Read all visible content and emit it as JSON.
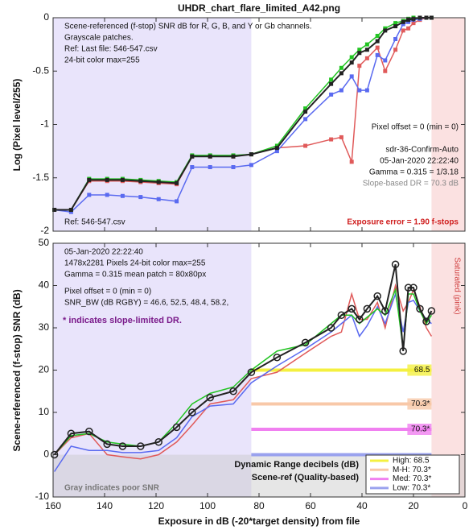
{
  "chart_data": [
    {
      "type": "line",
      "title": "UHDR_chart_flare_limited_A42.png",
      "ylabel": "Log (Pixel level/255)",
      "notes": [
        "Scene-referenced (f-stop) SNR dB for R, G, B, and Y or Gb channels.",
        "Grayscale patches.",
        "Ref: Last file: 546-547.csv",
        "24-bit color  max=255"
      ],
      "info": [
        "Pixel offset = 0  (min = 0)",
        "sdr-36-Confirm-Auto",
        "05-Jan-2020 22:22:40",
        "Gamma = 0.315 = 1/3.18"
      ],
      "slope_dr": "Slope-based DR = 70.3 dB",
      "ref": "Ref: 546-547.csv",
      "exposure_error": "Exposure error = 1.90 f-stops",
      "xlim": [
        160,
        0
      ],
      "xticks": [
        160,
        140,
        120,
        100,
        80,
        60,
        40,
        20,
        0
      ],
      "show_xtick_labels": false,
      "ylim": [
        -2,
        0
      ],
      "yticks": [
        -2,
        -1.5,
        -1,
        -0.5,
        0
      ],
      "regions": [
        {
          "xrange": [
            160,
            83
          ],
          "color": "#e9e4fb"
        },
        {
          "xrange": [
            13,
            0
          ],
          "color": "#fbe1e1"
        }
      ],
      "marker": "square",
      "x": [
        159.5,
        153,
        146,
        139,
        133,
        126,
        119,
        112,
        106,
        99,
        90,
        83,
        73,
        62,
        52,
        48,
        44,
        41,
        38,
        34,
        31,
        27,
        24,
        22,
        20,
        17.5,
        15,
        13
      ],
      "series": [
        {
          "color": "#e05a5a",
          "values": [
            -1.8,
            -1.8,
            -1.53,
            -1.53,
            -1.53,
            -1.54,
            -1.55,
            -1.56,
            -1.3,
            -1.3,
            -1.3,
            -1.28,
            -1.22,
            -1.2,
            -1.14,
            -1.12,
            -1.35,
            -0.45,
            -0.38,
            -0.28,
            -0.5,
            -0.3,
            -0.12,
            -0.1,
            -0.05,
            -0.02,
            0,
            0
          ]
        },
        {
          "color": "#5a6af0",
          "values": [
            -1.8,
            -1.82,
            -1.66,
            -1.66,
            -1.67,
            -1.68,
            -1.7,
            -1.72,
            -1.4,
            -1.4,
            -1.4,
            -1.38,
            -1.25,
            -0.95,
            -0.72,
            -0.68,
            -0.55,
            -0.68,
            -0.68,
            -0.35,
            -0.4,
            -0.2,
            -0.06,
            -0.04,
            -0.02,
            -0.01,
            0,
            0
          ]
        },
        {
          "color": "#22c422",
          "values": [
            -1.8,
            -1.8,
            -1.51,
            -1.51,
            -1.51,
            -1.52,
            -1.53,
            -1.54,
            -1.29,
            -1.29,
            -1.29,
            -1.28,
            -1.2,
            -0.85,
            -0.58,
            -0.47,
            -0.37,
            -0.3,
            -0.25,
            -0.17,
            -0.1,
            -0.05,
            -0.03,
            -0.01,
            0,
            0,
            0,
            0
          ]
        },
        {
          "color": "#222222",
          "values": [
            -1.8,
            -1.8,
            -1.52,
            -1.52,
            -1.52,
            -1.53,
            -1.54,
            -1.55,
            -1.3,
            -1.3,
            -1.3,
            -1.28,
            -1.22,
            -0.88,
            -0.62,
            -0.52,
            -0.42,
            -0.33,
            -0.3,
            -0.22,
            -0.12,
            -0.08,
            -0.04,
            -0.02,
            -0.01,
            0,
            0,
            0
          ]
        }
      ]
    },
    {
      "type": "line",
      "ylabel": "Scene-referenced (f-stop) SNR (dB)",
      "xlabel": "Exposure in dB (-20*target density)   from file",
      "notes": [
        "05-Jan-2020 22:22:40",
        "1478x2281 Pixels   24-bit color  max=255",
        "Gamma = 0.315   mean patch = 80x80px",
        "Pixel offset = 0  (min = 0)",
        "SNR_BW (dB RGBY) = 46.6, 52.5, 48.4, 58.2,"
      ],
      "slope_note": "* indicates slope-limited DR.",
      "saturated": "Saturated (pink)",
      "gray_note": "Gray indicates poor SNR",
      "dr_title": [
        "Dynamic Range decibels (dB)",
        "Scene-ref (Quality-based)"
      ],
      "xlim": [
        160,
        0
      ],
      "xticks": [
        160,
        140,
        120,
        100,
        80,
        60,
        40,
        20,
        0
      ],
      "show_xtick_labels": true,
      "ylim": [
        -10,
        50
      ],
      "yticks": [
        -10,
        0,
        10,
        20,
        30,
        40,
        50
      ],
      "regions": [
        {
          "xrange": [
            160,
            83
          ],
          "color": "#e9e4fb"
        },
        {
          "xrange": [
            13,
            0
          ],
          "color": "#fbe1e1"
        }
      ],
      "poor_snr": [
        -10,
        0
      ],
      "dr_range": [
        83,
        13
      ],
      "levels": [
        {
          "snr": 20,
          "label": "68.5",
          "legend": "High:  68.5",
          "color": "#f4f040"
        },
        {
          "snr": 12,
          "label": "70.3*",
          "legend": "M-H:  70.3*",
          "color": "#f8c8a8"
        },
        {
          "snr": 6,
          "label": "70.3*",
          "legend": "Med:  70.3*",
          "color": "#f080f0"
        },
        {
          "snr": 0,
          "label": "",
          "legend": "Low:  70.3*",
          "color": "#9aa2ee"
        }
      ],
      "x": [
        159.5,
        153,
        146,
        139,
        133,
        126,
        119,
        112,
        106,
        99,
        90,
        83,
        73,
        62,
        52,
        48,
        44,
        41,
        38,
        34,
        31,
        27,
        24,
        22,
        20,
        17.5,
        15,
        13
      ],
      "series": [
        {
          "color": "#e05a5a",
          "marker": "none",
          "values": [
            0,
            4,
            5,
            0,
            -0.5,
            -1,
            0,
            3,
            7,
            12,
            13,
            18,
            19.5,
            24,
            28,
            29,
            38,
            32,
            32,
            36,
            30,
            40,
            34,
            36,
            39,
            35,
            30,
            28
          ]
        },
        {
          "color": "#5a6af0",
          "marker": "none",
          "values": [
            -4,
            2,
            1,
            1,
            0.5,
            0.5,
            1,
            4,
            9,
            11.5,
            12,
            17,
            21,
            25,
            29,
            31,
            33,
            28,
            30.5,
            35,
            31,
            38,
            29,
            36,
            36.5,
            34,
            32,
            31
          ]
        },
        {
          "color": "#22c422",
          "marker": "none",
          "values": [
            0,
            4.5,
            5,
            3,
            2.5,
            2,
            3,
            7.5,
            12,
            14.5,
            16,
            20,
            24.5,
            26,
            31,
            33,
            33,
            31,
            32.5,
            34.5,
            33,
            39,
            25,
            38,
            38,
            34,
            31,
            33
          ]
        },
        {
          "color": "#222222",
          "marker": "circle",
          "values": [
            0,
            5,
            5.5,
            2.5,
            2,
            2,
            3,
            6.5,
            10,
            13.5,
            15,
            19.5,
            23,
            26.5,
            30,
            33,
            34.5,
            32,
            34.5,
            37.5,
            34,
            45,
            24.5,
            39.5,
            39.5,
            34.5,
            31.5,
            34
          ]
        }
      ]
    }
  ]
}
